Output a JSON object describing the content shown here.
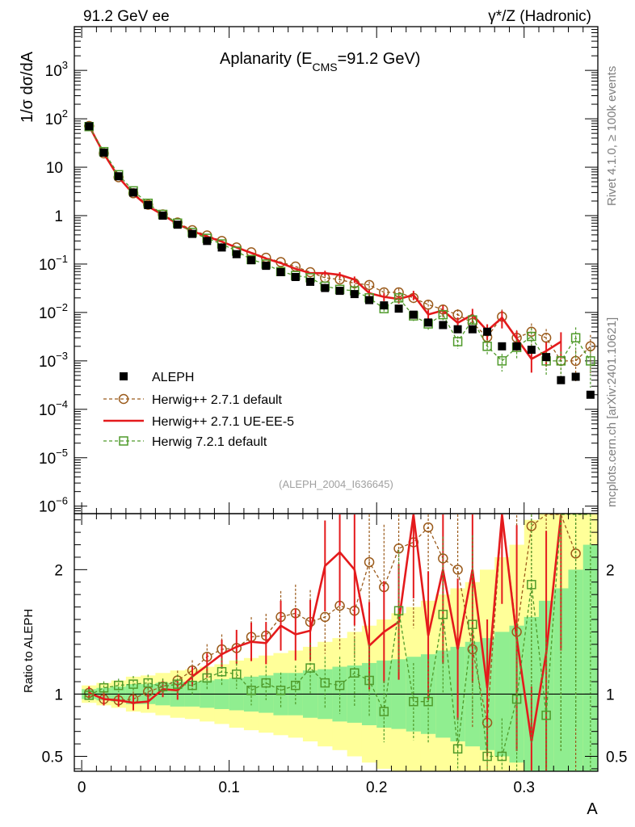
{
  "header": {
    "left": "91.2 GeV ee",
    "right": "γ*/Z (Hadronic)",
    "side_top": "Rivet 4.1.0, ≥ 100k events",
    "side_bottom": "mcplots.cern.ch [arXiv:2401.10621]"
  },
  "chart_data": {
    "type": "line",
    "title": "Aplanarity (E",
    "title_sub": "CMS",
    "title_end": "=91.2 GeV)",
    "ylabel": "1/σ  dσ/dA",
    "xlabel": "A",
    "ratio_ylabel": "Ratio to ALEPH",
    "analysis": "(ALEPH_2004_I636645)",
    "xlim": [
      -0.005,
      0.35
    ],
    "ylim": [
      7e-07,
      8000
    ],
    "yscale": "log",
    "ratio_ylim": [
      0.38,
      2.45
    ],
    "x_ticks": [
      0,
      0.1,
      0.2,
      0.3
    ],
    "x_tick_labels": [
      "0",
      "0.1",
      "0.2",
      "0.3"
    ],
    "y_ticks": [
      1e-06,
      1e-05,
      0.0001,
      0.001,
      0.01,
      0.1,
      1,
      10,
      100,
      1000
    ],
    "y_tick_labels": [
      [
        "10",
        "−6"
      ],
      [
        "10",
        "−5"
      ],
      [
        "10",
        "−4"
      ],
      [
        "10",
        "−3"
      ],
      [
        "10",
        "−2"
      ],
      [
        "10",
        "−1"
      ],
      [
        "1",
        ""
      ],
      [
        "10",
        ""
      ],
      [
        "10",
        "2"
      ],
      [
        "10",
        "3"
      ]
    ],
    "ratio_ticks": [
      0.5,
      1,
      2
    ],
    "ratio_tick_labels": [
      "0.5",
      "1",
      "2"
    ],
    "x": [
      0.005,
      0.015,
      0.025,
      0.035,
      0.045,
      0.055,
      0.065,
      0.075,
      0.085,
      0.095,
      0.105,
      0.115,
      0.125,
      0.135,
      0.145,
      0.155,
      0.165,
      0.175,
      0.185,
      0.195,
      0.205,
      0.215,
      0.225,
      0.235,
      0.245,
      0.255,
      0.265,
      0.275,
      0.285,
      0.295,
      0.305,
      0.315,
      0.325,
      0.335,
      0.345
    ],
    "bin_edges": [
      0,
      0.01,
      0.02,
      0.03,
      0.04,
      0.05,
      0.06,
      0.07,
      0.08,
      0.09,
      0.1,
      0.11,
      0.12,
      0.13,
      0.14,
      0.15,
      0.16,
      0.17,
      0.18,
      0.19,
      0.2,
      0.21,
      0.22,
      0.23,
      0.24,
      0.25,
      0.26,
      0.27,
      0.28,
      0.29,
      0.3,
      0.31,
      0.32,
      0.33,
      0.34,
      0.35
    ],
    "band_inner_half": [
      0.04,
      0.05,
      0.06,
      0.08,
      0.08,
      0.09,
      0.1,
      0.1,
      0.11,
      0.12,
      0.13,
      0.14,
      0.15,
      0.17,
      0.17,
      0.19,
      0.2,
      0.22,
      0.23,
      0.25,
      0.27,
      0.28,
      0.3,
      0.32,
      0.35,
      0.38,
      0.42,
      0.45,
      0.5,
      0.55,
      0.62,
      0.75,
      0.85,
      1,
      1.2
    ],
    "band_outer_half": [
      0.07,
      0.09,
      0.11,
      0.14,
      0.15,
      0.17,
      0.19,
      0.2,
      0.22,
      0.24,
      0.27,
      0.29,
      0.31,
      0.33,
      0.35,
      0.38,
      0.42,
      0.45,
      0.5,
      0.55,
      0.6,
      0.65,
      0.7,
      0.75,
      0.8,
      0.85,
      0.9,
      1,
      1.1,
      1.2,
      1.4,
      1.6,
      1.8,
      2,
      2.2
    ],
    "series": [
      {
        "name": "ALEPH",
        "color": "#000000",
        "marker": "filled-square",
        "values": [
          70,
          20,
          6.5,
          3.0,
          1.65,
          1.0,
          0.65,
          0.42,
          0.3,
          0.22,
          0.16,
          0.12,
          0.092,
          0.068,
          0.054,
          0.043,
          0.032,
          0.028,
          0.024,
          0.018,
          0.014,
          0.012,
          0.009,
          0.0062,
          0.0055,
          0.0045,
          0.0045,
          0.004,
          0.002,
          0.002,
          0.0017,
          0.0012,
          0.0004,
          0.00047,
          0.0002
        ]
      },
      {
        "name": "Herwig++ 2.7.1 default",
        "color": "#9b5b1c",
        "marker": "open-circle",
        "values": [
          71,
          19.3,
          6.2,
          2.9,
          1.68,
          1.06,
          0.72,
          0.5,
          0.39,
          0.3,
          0.22,
          0.175,
          0.135,
          0.11,
          0.089,
          0.068,
          0.052,
          0.048,
          0.04,
          0.037,
          0.026,
          0.026,
          0.02,
          0.0145,
          0.0115,
          0.009,
          0.0061,
          0.0031,
          0.0082,
          0.003,
          0.004,
          0.003,
          0.001,
          0.001,
          0.002
        ]
      },
      {
        "name": "Herwig++ 2.7.1 UE-EE-5",
        "color": "#e41a1c",
        "marker": "line",
        "values": [
          71,
          19.2,
          6.2,
          2.8,
          1.55,
          1.04,
          0.67,
          0.48,
          0.37,
          0.29,
          0.22,
          0.17,
          0.13,
          0.105,
          0.08,
          0.065,
          0.065,
          0.06,
          0.048,
          0.025,
          0.021,
          0.019,
          0.023,
          0.0091,
          0.011,
          0.0061,
          0.009,
          0.0042,
          0.0078,
          0.0029,
          0.0011,
          0.0016,
          0.0025,
          null,
          null
        ]
      },
      {
        "name": "Herwig 7.2.1 default",
        "color": "#4f9a2a",
        "marker": "open-square",
        "values": [
          69,
          21,
          7.0,
          3.25,
          1.8,
          1.06,
          0.7,
          0.45,
          0.34,
          0.26,
          0.185,
          0.124,
          0.1,
          0.07,
          0.058,
          0.052,
          0.035,
          0.03,
          0.028,
          0.02,
          0.012,
          0.02,
          0.0085,
          0.0058,
          0.009,
          0.0025,
          0.007,
          0.002,
          0.001,
          0.0019,
          0.0032,
          0.001,
          0.001,
          0.003,
          0.001
        ]
      }
    ],
    "ratios": [
      [
        1.01,
        0.96,
        0.95,
        0.96,
        1.02,
        1.06,
        1.11,
        1.19,
        1.3,
        1.36,
        1.37,
        1.46,
        1.47,
        1.62,
        1.65,
        1.58,
        1.62,
        1.71,
        1.67,
        2.06,
        1.86,
        2.17,
        2.22,
        2.34,
        2.09,
        2.0,
        1.36,
        0.77,
        4.1,
        1.5,
        2.35,
        2.5,
        2.5,
        2.13,
        null
      ],
      [
        1.01,
        0.96,
        0.95,
        0.93,
        0.94,
        1.04,
        1.03,
        1.14,
        1.23,
        1.32,
        1.38,
        1.42,
        1.41,
        1.55,
        1.48,
        1.51,
        2.03,
        2.14,
        2.0,
        1.39,
        1.5,
        1.58,
        2.56,
        1.47,
        2.0,
        1.36,
        2.0,
        1.05,
        3.9,
        1.45,
        0.62,
        1.33,
        6.0,
        null,
        null
      ],
      [
        0.99,
        1.05,
        1.07,
        1.08,
        1.09,
        1.06,
        1.08,
        1.07,
        1.13,
        1.18,
        1.16,
        1.03,
        1.09,
        1.03,
        1.07,
        1.21,
        1.09,
        1.07,
        1.17,
        1.11,
        0.86,
        1.67,
        0.94,
        0.94,
        1.64,
        0.56,
        1.56,
        0.5,
        0.5,
        0.96,
        1.88,
        0.83,
        2.5,
        6.4,
        5.0
      ]
    ],
    "ratio_err_rel": [
      0.02,
      0.02,
      0.02,
      0.03,
      0.03,
      0.03,
      0.04,
      0.04,
      0.05,
      0.06,
      0.07,
      0.08,
      0.09,
      0.1,
      0.11,
      0.13,
      0.15,
      0.17,
      0.19,
      0.21,
      0.23,
      0.25,
      0.27,
      0.3,
      0.33,
      0.36,
      0.4,
      0.45,
      0.5,
      0.55,
      0.6,
      0.65,
      0.7,
      0.8,
      0.9
    ]
  }
}
